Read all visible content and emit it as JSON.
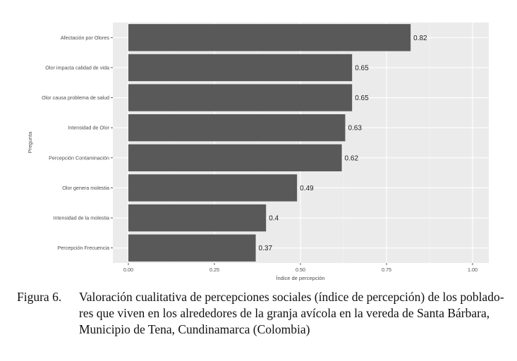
{
  "chart_data": {
    "type": "bar",
    "orientation": "horizontal",
    "categories": [
      "Afectación por Olores",
      "Olor impacta calidad de vida",
      "Olor causa problema de salud",
      "Intensidad de Olor",
      "Percepción Contaminación",
      "Olor genera molestia",
      "Intensidad de la molestia",
      "Percepción Frecuencia"
    ],
    "values": [
      0.82,
      0.65,
      0.65,
      0.63,
      0.62,
      0.49,
      0.4,
      0.37
    ],
    "value_labels": [
      "0.82",
      "0.65",
      "0.65",
      "0.63",
      "0.62",
      "0.49",
      "0.4",
      "0.37"
    ],
    "xlabel": "Índice de percepción",
    "ylabel": "Pregunta",
    "xlim": [
      0,
      1
    ],
    "xticks": [
      0,
      0.25,
      0.5,
      0.75,
      1
    ],
    "xtick_labels": [
      "0.00",
      "0.25",
      "0.50",
      "0.75",
      "1.00"
    ],
    "grid": true,
    "colors": {
      "bar": "#595959",
      "panel": "#ebebeb",
      "grid_major": "#ffffff",
      "grid_minor": "#f3f3f3"
    }
  },
  "caption": {
    "number": "Figura 6.",
    "text": "Valoración cualitativa de percepciones sociales (índice de percepción) de los poblado-res que viven en los alrededores de la granja avícola en la vereda de Santa Bárbara, Municipio de Tena, Cundinamarca (Colombia)"
  }
}
